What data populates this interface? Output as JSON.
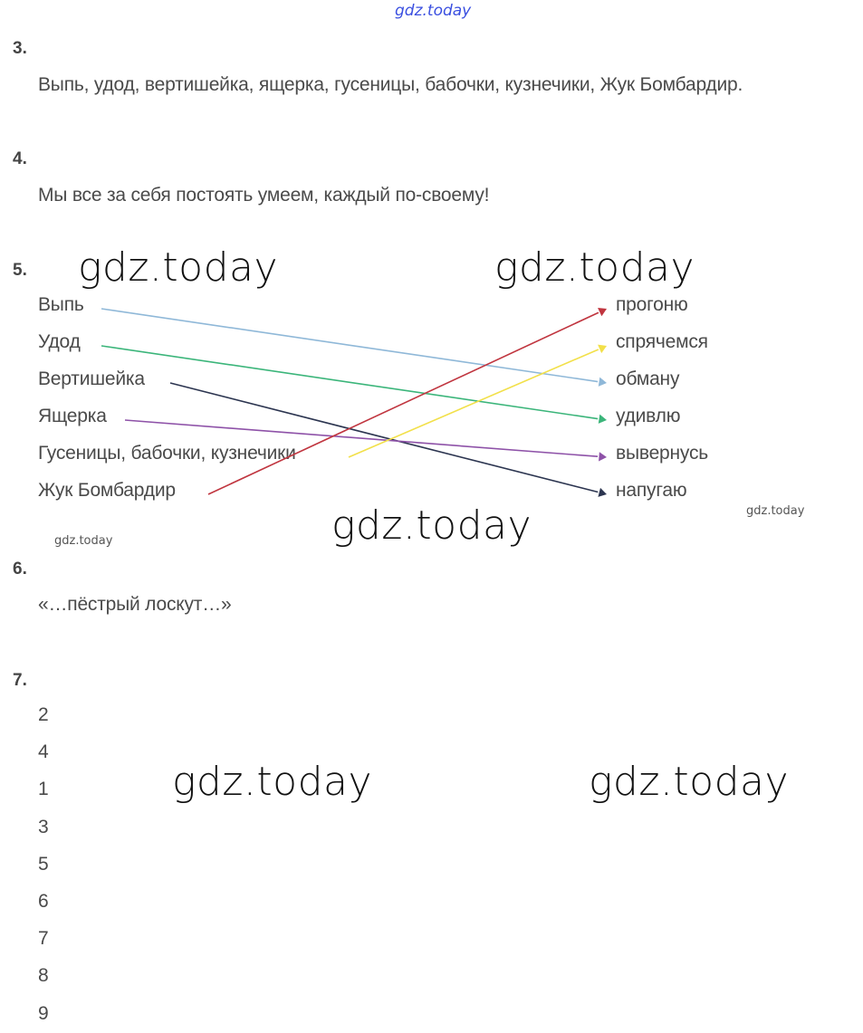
{
  "watermarks": {
    "top": "gdz.today",
    "text": "gdz.today"
  },
  "q3": {
    "number": "3.",
    "text": "Выпь, удод, вертишейка, ящерка, гусеницы, бабочки, кузнечики, Жук Бомбардир."
  },
  "q4": {
    "number": "4.",
    "text": "Мы все за себя постоять умеем, каждый по-своему!"
  },
  "q5": {
    "number": "5.",
    "left": [
      "Выпь",
      "Удод",
      "Вертишейка",
      "Ящерка",
      "Гусеницы, бабочки, кузнечики",
      "Жук Бомбардир"
    ],
    "right": [
      "прогоню",
      "спрячемся",
      "обману",
      "удивлю",
      "вывернусь",
      "напугаю"
    ],
    "connections": [
      {
        "from": 0,
        "to": 2,
        "color": "#8fb8d8"
      },
      {
        "from": 1,
        "to": 3,
        "color": "#3bb57a"
      },
      {
        "from": 2,
        "to": 5,
        "color": "#2c3550"
      },
      {
        "from": 3,
        "to": 4,
        "color": "#8e52a8"
      },
      {
        "from": 4,
        "to": 1,
        "color": "#f2e04a"
      },
      {
        "from": 5,
        "to": 0,
        "color": "#c0353f"
      }
    ]
  },
  "q6": {
    "number": "6.",
    "text": "«…пёстрый лоскут…»"
  },
  "q7": {
    "number": "7.",
    "items": [
      "2",
      "4",
      "1",
      "3",
      "5",
      "6",
      "7",
      "8",
      "9"
    ]
  }
}
